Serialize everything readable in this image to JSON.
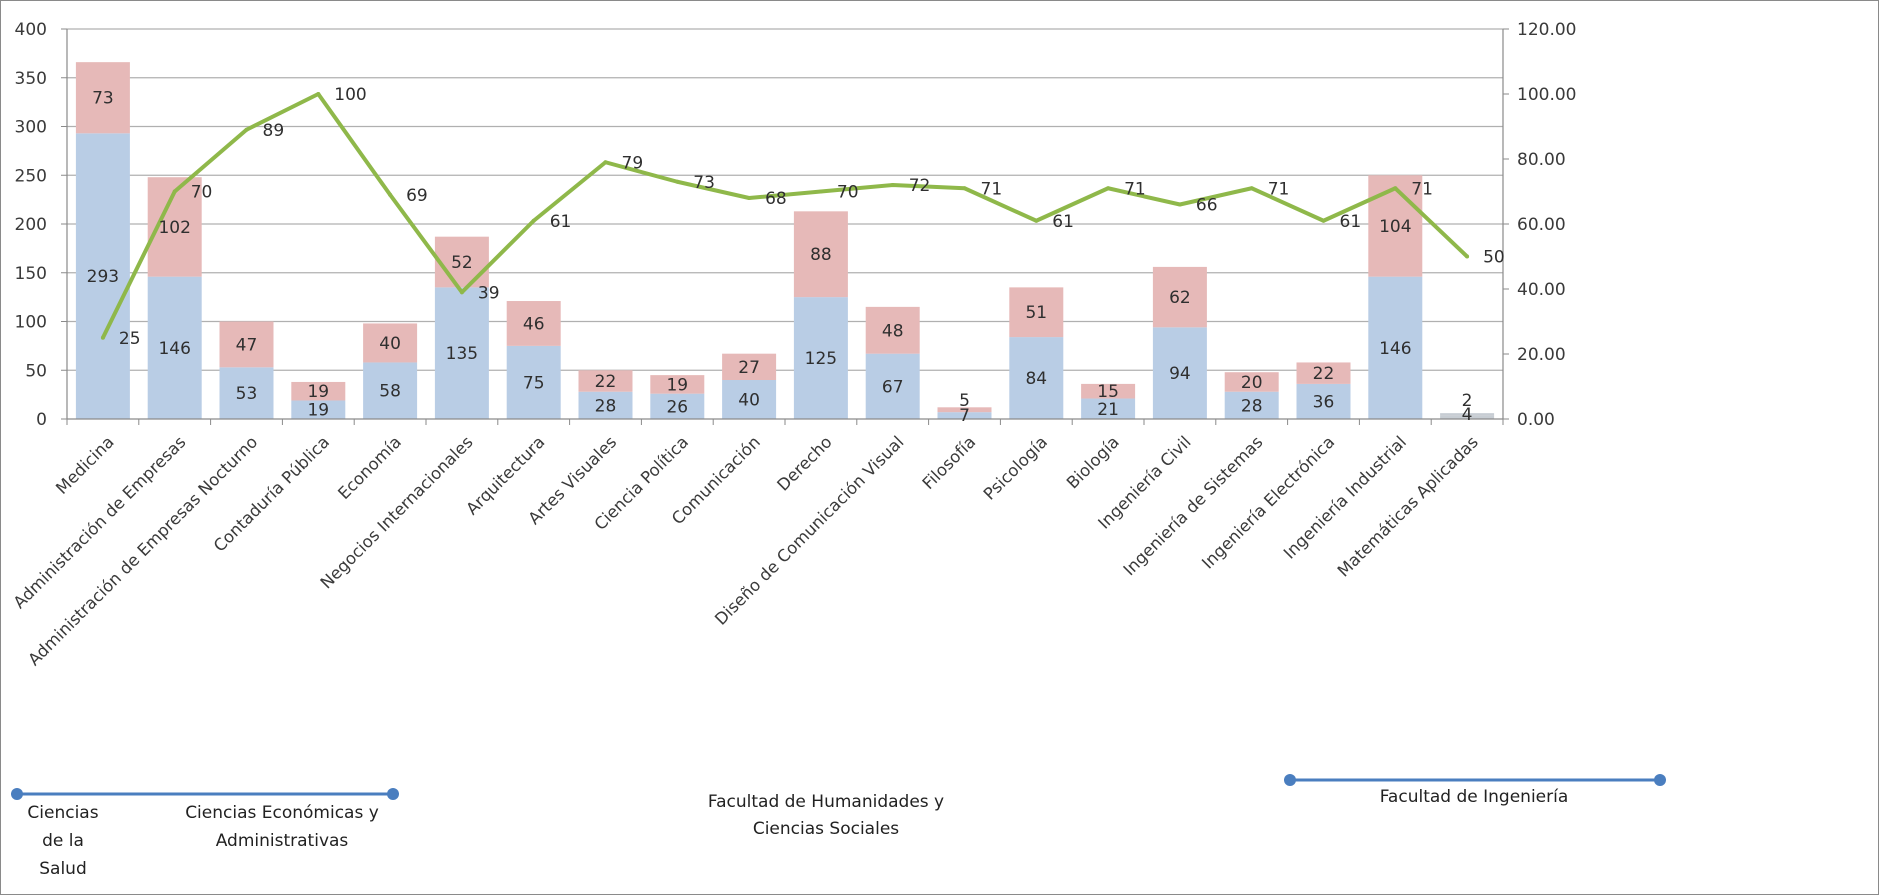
{
  "chart_data": {
    "type": "bar",
    "stacked": true,
    "categories": [
      "Medicina",
      "Administración de Empresas",
      "Administración de Empresas Nocturno",
      "Contaduría Pública",
      "Economía",
      "Negocios Internacionales",
      "Arquitectura",
      "Artes Visuales",
      "Ciencia Política",
      "Comunicación",
      "Derecho",
      "Diseño de Comunicación Visual",
      "Filosofía",
      "Psicología",
      "Biología",
      "Ingeniería Civil",
      "Ingeniería de Sistemas",
      "Ingeniería Electrónica",
      "Ingeniería Industrial",
      "Matemáticas Aplicadas"
    ],
    "series": [
      {
        "type": "bar",
        "color": "#b9cde5",
        "values": [
          293,
          146,
          53,
          19,
          58,
          135,
          75,
          28,
          26,
          40,
          125,
          67,
          7,
          84,
          21,
          94,
          28,
          36,
          146,
          4
        ]
      },
      {
        "type": "bar",
        "color": "#e6b9b8",
        "values": [
          73,
          102,
          47,
          19,
          40,
          52,
          46,
          22,
          19,
          27,
          88,
          48,
          5,
          51,
          15,
          62,
          20,
          22,
          104,
          2
        ]
      },
      {
        "type": "line",
        "axis": "right",
        "color": "#8fb84a",
        "values": [
          25,
          70,
          89,
          100,
          69,
          39,
          61,
          79,
          73,
          68,
          70,
          72,
          71,
          61,
          71,
          66,
          71,
          61,
          71,
          50
        ]
      }
    ],
    "bar_labels": {
      "bottom": [
        "293",
        "146",
        "53",
        "19",
        "58",
        "135",
        "75",
        "28",
        "26",
        "40",
        "125",
        "67",
        "7",
        "84",
        "21",
        "94",
        "28",
        "36",
        "146",
        "4"
      ],
      "top": [
        "73",
        "102",
        "47",
        "19",
        "40",
        "52",
        "46",
        "22",
        "19",
        "27",
        "88",
        "48",
        "5",
        "51",
        "15",
        "62",
        "20",
        "22",
        "104",
        "2"
      ]
    },
    "line_labels": [
      "25",
      "70",
      "89",
      "100",
      "69",
      "39",
      "61",
      "79",
      "73",
      "68",
      "70",
      "72",
      "71",
      "61",
      "71",
      "66",
      "71",
      "61",
      "71",
      "50"
    ],
    "left_axis": {
      "ylim": [
        0,
        400
      ],
      "ticks": [
        "0",
        "50",
        "100",
        "150",
        "200",
        "250",
        "300",
        "350",
        "400"
      ]
    },
    "right_axis": {
      "ylim": [
        0,
        120
      ],
      "ticks": [
        "0.00",
        "20.00",
        "40.00",
        "60.00",
        "80.00",
        "100.00",
        "120.00"
      ]
    },
    "grid": true,
    "grid_color": "#b0b0b0",
    "faculty_groups": [
      {
        "label_lines": [
          "Ciencias",
          "de la",
          "Salud"
        ]
      },
      {
        "label_lines": [
          "Ciencias Económicas y",
          "Administrativas"
        ]
      },
      {
        "label_lines": [
          "Facultad  de Humanidades y",
          "Ciencias Sociales"
        ]
      },
      {
        "label_lines": [
          "Facultad  de Ingeniería"
        ]
      }
    ],
    "bracket_color": "#4a7ebf"
  }
}
